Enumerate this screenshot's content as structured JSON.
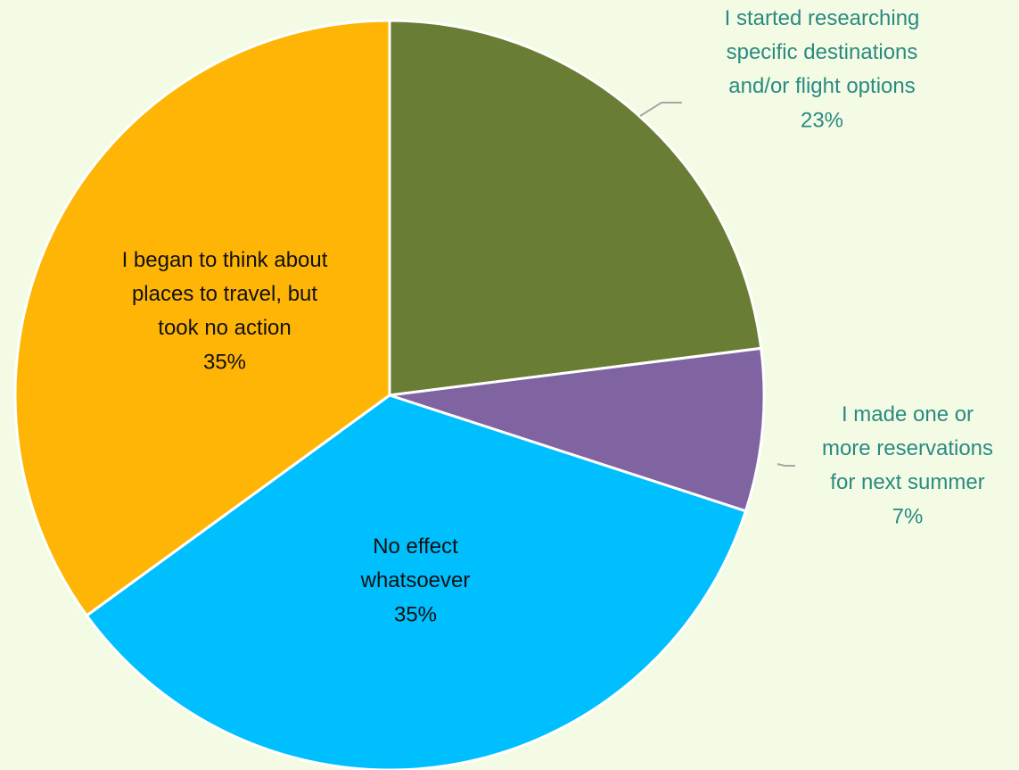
{
  "chart_data": {
    "type": "pie",
    "categories": [
      "I started researching\nspecific destinations\nand/or flight options",
      "I made one or\nmore reservations\nfor next summer",
      "No effect\nwhatsoever",
      "I began to think about\nplaces to travel, but\ntook no action"
    ],
    "values": [
      23,
      7,
      35,
      35
    ],
    "value_labels": [
      "23%",
      "7%",
      "35%",
      "35%"
    ],
    "colors": [
      "#6a7d34",
      "#8064a2",
      "#00bfff",
      "#ffb505"
    ]
  }
}
